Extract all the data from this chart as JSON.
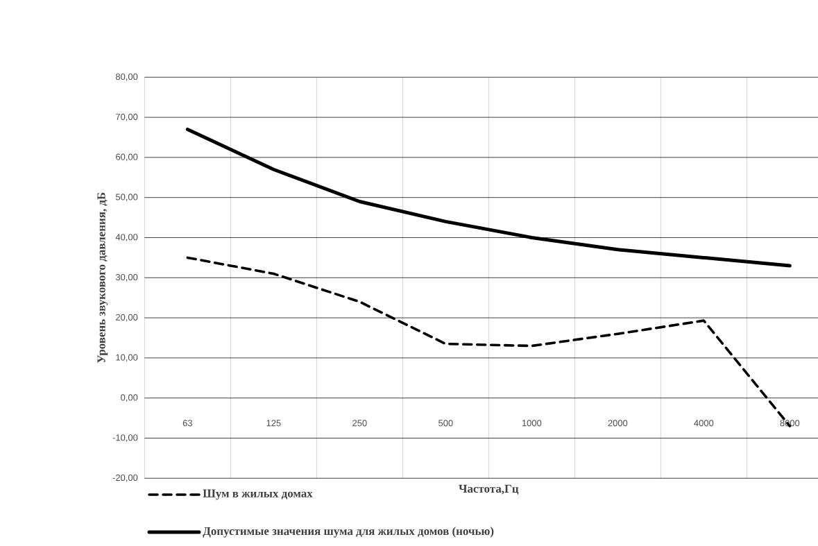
{
  "chart_data": {
    "type": "line",
    "xlabel": "Частота,Гц",
    "ylabel": "Уровень звукового давления, дБ",
    "categories": [
      "63",
      "125",
      "250",
      "500",
      "1000",
      "2000",
      "4000",
      "8000"
    ],
    "series": [
      {
        "name": "Шум в жилых домах",
        "color": "#000000",
        "line_style": "dashed",
        "values": [
          35,
          31,
          24,
          13.5,
          13,
          16,
          19.3,
          -7
        ]
      },
      {
        "name": "Допустимые значения шума для жилых домов (ночью)",
        "color": "#000000",
        "line_style": "solid",
        "values": [
          67,
          57,
          49,
          44,
          40,
          37,
          35,
          33
        ]
      }
    ],
    "ylim": [
      -20,
      80
    ],
    "yticks": [
      {
        "value": -20,
        "label": "-20,00"
      },
      {
        "value": -10,
        "label": "-10,00"
      },
      {
        "value": 0,
        "label": "0,00"
      },
      {
        "value": 10,
        "label": "10,00"
      },
      {
        "value": 20,
        "label": "20,00"
      },
      {
        "value": 30,
        "label": "30,00"
      },
      {
        "value": 40,
        "label": "40,00"
      },
      {
        "value": 50,
        "label": "50,00"
      },
      {
        "value": 60,
        "label": "60,00"
      },
      {
        "value": 70,
        "label": "70,00"
      },
      {
        "value": 80,
        "label": "80,00"
      }
    ],
    "grid": true,
    "legend": "bottom",
    "marker": "none"
  }
}
